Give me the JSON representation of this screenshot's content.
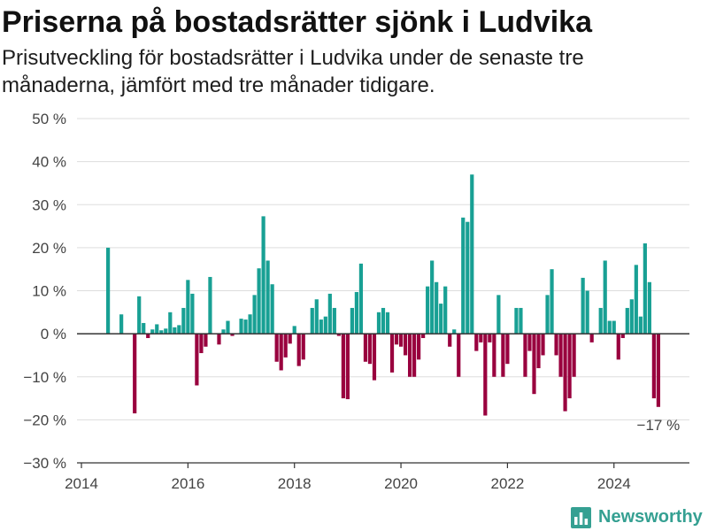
{
  "chart_data": {
    "type": "bar",
    "title": "Priserna på bostadsrätter sjönk i Ludvika",
    "subtitle": "Prisutveckling för bostadsrätter i Ludvika under de senaste tre månaderna, jämfört med tre månader tidigare.",
    "x": [
      "2014-07",
      "2014-10",
      "2015-01",
      "2015-02",
      "2015-03",
      "2015-04",
      "2015-05",
      "2015-06",
      "2015-07",
      "2015-08",
      "2015-09",
      "2015-10",
      "2015-11",
      "2015-12",
      "2016-01",
      "2016-02",
      "2016-03",
      "2016-04",
      "2016-05",
      "2016-06",
      "2016-08",
      "2016-09",
      "2016-10",
      "2016-11",
      "2017-01",
      "2017-02",
      "2017-03",
      "2017-04",
      "2017-05",
      "2017-06",
      "2017-07",
      "2017-08",
      "2017-09",
      "2017-10",
      "2017-11",
      "2017-12",
      "2018-01",
      "2018-02",
      "2018-03",
      "2018-05",
      "2018-06",
      "2018-07",
      "2018-08",
      "2018-09",
      "2018-10",
      "2018-11",
      "2018-12",
      "2019-01",
      "2019-02",
      "2019-03",
      "2019-04",
      "2019-05",
      "2019-06",
      "2019-07",
      "2019-08",
      "2019-09",
      "2019-10",
      "2019-11",
      "2019-12",
      "2020-01",
      "2020-02",
      "2020-03",
      "2020-04",
      "2020-05",
      "2020-06",
      "2020-07",
      "2020-08",
      "2020-09",
      "2020-10",
      "2020-11",
      "2020-12",
      "2021-01",
      "2021-02",
      "2021-03",
      "2021-04",
      "2021-05",
      "2021-06",
      "2021-07",
      "2021-08",
      "2021-09",
      "2021-10",
      "2021-11",
      "2021-12",
      "2022-01",
      "2022-03",
      "2022-04",
      "2022-05",
      "2022-06",
      "2022-07",
      "2022-08",
      "2022-09",
      "2022-10",
      "2022-11",
      "2022-12",
      "2023-01",
      "2023-02",
      "2023-03",
      "2023-04",
      "2023-06",
      "2023-07",
      "2023-08",
      "2023-10",
      "2023-11",
      "2023-12",
      "2024-01",
      "2024-02",
      "2024-03",
      "2024-04",
      "2024-05",
      "2024-06",
      "2024-07",
      "2024-08",
      "2024-09",
      "2024-10",
      "2024-11"
    ],
    "values": [
      20,
      4.5,
      -18.5,
      8.7,
      2.5,
      -1,
      1,
      2.2,
      0.8,
      1.2,
      5,
      1.5,
      2,
      6,
      12.5,
      9.3,
      -12,
      -4.5,
      -3,
      13.2,
      -2.5,
      1,
      3,
      -0.5,
      3.5,
      3.3,
      4.5,
      9,
      15.2,
      27.3,
      17,
      11.5,
      -6.5,
      -8.5,
      -5.5,
      -2.3,
      1.8,
      -7.5,
      -6,
      6,
      8,
      3.3,
      4,
      9.3,
      6,
      -0.5,
      -15,
      -15.2,
      6,
      9.7,
      16.3,
      -6.5,
      -7,
      -10.8,
      5,
      6,
      5,
      -9,
      -2.5,
      -3,
      -5,
      -10,
      -10,
      -6,
      -1,
      11,
      17,
      12,
      7,
      11,
      -3,
      1,
      -10,
      27,
      26,
      37,
      -4,
      -2,
      -19,
      -2,
      -10,
      9,
      -10,
      -7,
      6,
      6,
      -10,
      -4,
      -14,
      -8,
      -5,
      9,
      15,
      -5,
      -10,
      -18,
      -15,
      -10,
      13,
      10,
      -2,
      6,
      17,
      3,
      3,
      -6,
      -1,
      6,
      8,
      16,
      4,
      21,
      12,
      -15,
      -17
    ],
    "xlim": [
      "2013-12",
      "2025-06"
    ],
    "ylim": [
      -30,
      50
    ],
    "xticks": [
      2014,
      2016,
      2018,
      2020,
      2022,
      2024
    ],
    "xtick_labels": [
      "2014",
      "2016",
      "2018",
      "2020",
      "2022",
      "2024"
    ],
    "yticks": [
      50,
      40,
      30,
      20,
      10,
      0,
      -10,
      -20,
      -30
    ],
    "ytick_labels": [
      "50 %",
      "40 %",
      "30 %",
      "20 %",
      "10 %",
      "0 %",
      "−10 %",
      "−20 %",
      "−30 %"
    ],
    "grid": true,
    "zero_line": true,
    "annotations": [
      {
        "text": "−17 %",
        "x": "2024-11",
        "y": -17
      }
    ],
    "colors": {
      "positive": "#18a094",
      "negative": "#99003e",
      "grid": "#dddddd",
      "axis": "#333333",
      "tick_text": "#444444",
      "annotation_text": "#222222"
    }
  },
  "brand": {
    "name": "Newsworthy",
    "icon": "newsworthy-logo-icon",
    "color": "#35a092"
  }
}
